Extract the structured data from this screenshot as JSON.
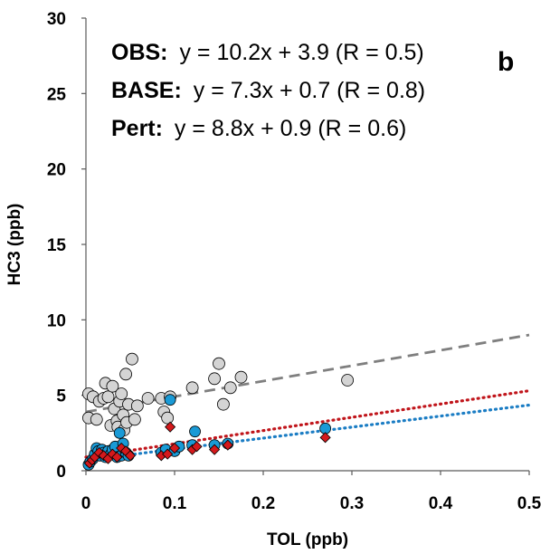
{
  "chart_data": {
    "type": "scatter",
    "xlabel": "TOL (ppb)",
    "ylabel": "HC3 (ppb)",
    "xlim": [
      0,
      0.5
    ],
    "ylim": [
      0,
      30
    ],
    "x_ticks": [
      "0",
      "0.1",
      "0.2",
      "0.3",
      "0.4",
      "0.5"
    ],
    "y_ticks": [
      "0",
      "5",
      "10",
      "15",
      "20",
      "25",
      "30"
    ],
    "grid": false,
    "panel_label": "b",
    "colors": {
      "obs_fill": "#d4d4d4",
      "base_fill": "#1a9ad6",
      "pert_fill": "#d4191c",
      "obs_line": "#7f7f7f",
      "base_line": "#1b7dc4",
      "pert_line": "#c0151b"
    },
    "fits": [
      {
        "name": "OBS:",
        "equation": "y = 10.2x + 3.9 (R = 0.5)",
        "slope": 10.2,
        "intercept": 3.9,
        "style": "dashed"
      },
      {
        "name": "BASE:",
        "equation": "y = 7.3x + 0.7 (R = 0.8)",
        "slope": 7.3,
        "intercept": 0.7,
        "style": "dotted"
      },
      {
        "name": "Pert:",
        "equation": "y = 8.8x + 0.9 (R = 0.6)",
        "slope": 8.8,
        "intercept": 0.9,
        "style": "dotted"
      }
    ],
    "series": [
      {
        "key": "obs",
        "marker": "circle",
        "points": [
          [
            0.003,
            5.1
          ],
          [
            0.003,
            3.5
          ],
          [
            0.008,
            4.9
          ],
          [
            0.012,
            3.4
          ],
          [
            0.015,
            4.6
          ],
          [
            0.02,
            4.8
          ],
          [
            0.022,
            5.8
          ],
          [
            0.025,
            4.9
          ],
          [
            0.028,
            3.0
          ],
          [
            0.03,
            5.6
          ],
          [
            0.032,
            4.1
          ],
          [
            0.035,
            3.3
          ],
          [
            0.036,
            2.9
          ],
          [
            0.038,
            4.6
          ],
          [
            0.04,
            5.1
          ],
          [
            0.042,
            3.7
          ],
          [
            0.043,
            2.7
          ],
          [
            0.045,
            6.4
          ],
          [
            0.046,
            3.2
          ],
          [
            0.048,
            4.4
          ],
          [
            0.052,
            7.4
          ],
          [
            0.055,
            3.4
          ],
          [
            0.058,
            4.3
          ],
          [
            0.07,
            4.8
          ],
          [
            0.085,
            4.8
          ],
          [
            0.088,
            3.9
          ],
          [
            0.092,
            3.5
          ],
          [
            0.095,
            4.9
          ],
          [
            0.12,
            5.5
          ],
          [
            0.145,
            6.1
          ],
          [
            0.15,
            7.1
          ],
          [
            0.155,
            4.4
          ],
          [
            0.163,
            5.5
          ],
          [
            0.175,
            6.2
          ],
          [
            0.295,
            6.0
          ]
        ]
      },
      {
        "key": "base",
        "marker": "circle",
        "points": [
          [
            0.003,
            0.4
          ],
          [
            0.005,
            0.6
          ],
          [
            0.008,
            0.8
          ],
          [
            0.01,
            1.1
          ],
          [
            0.012,
            1.5
          ],
          [
            0.014,
            1.3
          ],
          [
            0.016,
            1.0
          ],
          [
            0.018,
            1.4
          ],
          [
            0.02,
            1.2
          ],
          [
            0.022,
            0.9
          ],
          [
            0.025,
            1.3
          ],
          [
            0.028,
            1.1
          ],
          [
            0.03,
            1.4
          ],
          [
            0.033,
            1.6
          ],
          [
            0.035,
            0.9
          ],
          [
            0.038,
            2.5
          ],
          [
            0.04,
            1.0
          ],
          [
            0.042,
            1.8
          ],
          [
            0.045,
            1.2
          ],
          [
            0.048,
            1.0
          ],
          [
            0.085,
            1.2
          ],
          [
            0.09,
            1.4
          ],
          [
            0.095,
            4.7
          ],
          [
            0.1,
            1.3
          ],
          [
            0.105,
            1.6
          ],
          [
            0.12,
            1.7
          ],
          [
            0.123,
            2.6
          ],
          [
            0.145,
            1.7
          ],
          [
            0.16,
            1.8
          ],
          [
            0.27,
            2.8
          ]
        ]
      },
      {
        "key": "pert",
        "marker": "diamond",
        "points": [
          [
            0.004,
            0.5
          ],
          [
            0.007,
            0.7
          ],
          [
            0.01,
            0.9
          ],
          [
            0.015,
            1.2
          ],
          [
            0.02,
            1.0
          ],
          [
            0.025,
            0.8
          ],
          [
            0.03,
            1.1
          ],
          [
            0.035,
            0.9
          ],
          [
            0.04,
            1.5
          ],
          [
            0.045,
            1.3
          ],
          [
            0.05,
            1.0
          ],
          [
            0.085,
            1.0
          ],
          [
            0.092,
            1.1
          ],
          [
            0.095,
            2.9
          ],
          [
            0.1,
            1.5
          ],
          [
            0.12,
            1.4
          ],
          [
            0.125,
            1.6
          ],
          [
            0.145,
            1.4
          ],
          [
            0.16,
            1.7
          ],
          [
            0.27,
            2.2
          ]
        ]
      }
    ]
  }
}
